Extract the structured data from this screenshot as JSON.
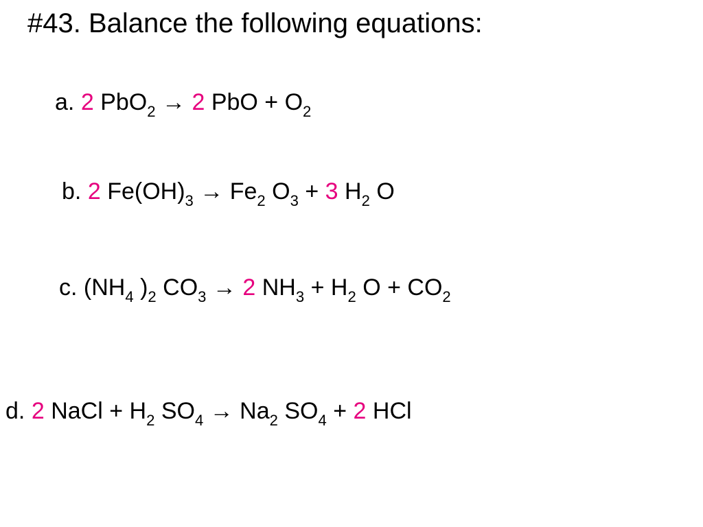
{
  "title": "#43.  Balance the following equations:",
  "colors": {
    "coefficient": "#e6007e",
    "text": "#000000",
    "background": "#ffffff"
  },
  "typography": {
    "title_fontsize": 40,
    "equation_fontsize": 34,
    "font_family": "Arial"
  },
  "equations": {
    "a": {
      "label": "a.",
      "coef1": "2",
      "term1a": " PbO",
      "term1a_sub": "2",
      "arrow": "   →  ",
      "coef2": "2",
      "term2a": " PbO   +   O",
      "term2a_sub": "2"
    },
    "b": {
      "label": "b.",
      "coef1": "  2",
      "term1a": " Fe(OH)",
      "term1a_sub": "3",
      "arrow": "   →       ",
      "term2a": "Fe",
      "term2a_sub": "2",
      "term2b": "O",
      "term2b_sub": "3",
      "plus1": "    + ",
      "coef2": "3",
      "term2c": " H",
      "term2c_sub": "2",
      "term2d": "O"
    },
    "c": {
      "label": "c.",
      "term1a": "    (NH",
      "term1a_sub": "4",
      "term1b": ")",
      "term1b_sub": "2",
      "term1c": "CO",
      "term1c_sub": "3",
      "arrow": "   →   ",
      "coef1": "2",
      "term2a": " NH",
      "term2a_sub": "3",
      "plus1": "    +    H",
      "term2b_sub": "2",
      "term2c": "O   +   CO",
      "term2c_sub": "2"
    },
    "d": {
      "label": "d.",
      "coef1": " 2",
      "term1a": " NaCl   +    H",
      "term1a_sub": "2",
      "term1b": "SO",
      "term1b_sub": "4",
      "arrow": "   →       ",
      "term2a": "Na",
      "term2a_sub": "2",
      "term2b": "SO",
      "term2b_sub": "4",
      "plus1": "    +    ",
      "coef2": "2",
      "term2c": " HCl"
    }
  }
}
